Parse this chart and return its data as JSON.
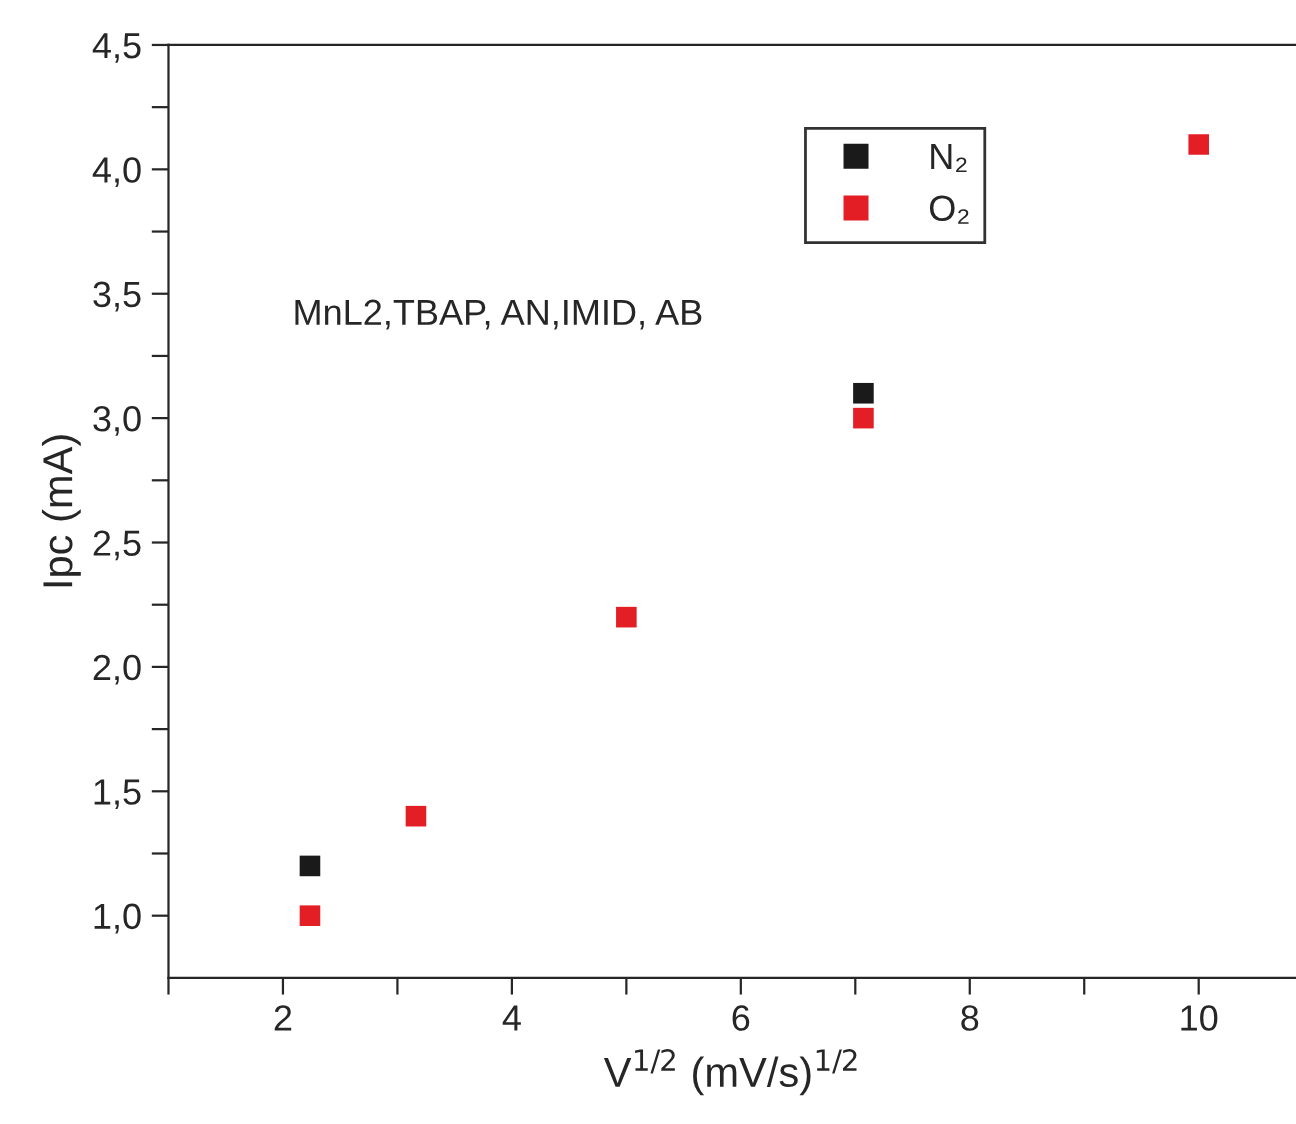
{
  "chart_data": {
    "type": "scatter",
    "xlabel": "V$^{1/2}$ (mV/s)$^{1/2}$",
    "ylabel": "Ipc (mA)",
    "annotations": [
      "MnL2,TBAP, AN,IMID, AB"
    ],
    "x": [
      2.236,
      3.162,
      5,
      7.071,
      10
    ],
    "series": [
      {
        "name": "N₂",
        "color": "#1a1a1a",
        "values": [
          1.2,
          null,
          null,
          3.1,
          null
        ]
      },
      {
        "name": "O₂",
        "color": "#e31e24",
        "values": [
          1.0,
          1.4,
          2.2,
          3.0,
          4.1
        ]
      }
    ],
    "marker": "square",
    "legend": "top right",
    "grid": false,
    "xlim": [
      1,
      10.85
    ],
    "ylim": [
      0.75,
      4.5
    ],
    "xticks": [
      {
        "value": 1,
        "label": null
      },
      2,
      {
        "value": 3,
        "label": null
      },
      4,
      {
        "value": 5,
        "label": null
      },
      6,
      {
        "value": 7,
        "label": null
      },
      8,
      {
        "value": 9,
        "label": null
      },
      10
    ],
    "yticks": [
      {
        "value": 1,
        "label": "1,0"
      },
      {
        "value": 1.25,
        "label": null
      },
      {
        "value": 1.5,
        "label": "1,5"
      },
      {
        "value": 1.75,
        "label": null
      },
      {
        "value": 2,
        "label": "2,0"
      },
      {
        "value": 2.25,
        "label": null
      },
      {
        "value": 2.5,
        "label": "2,5"
      },
      {
        "value": 2.75,
        "label": null
      },
      {
        "value": 3,
        "label": "3,0"
      },
      {
        "value": 3.25,
        "label": null
      },
      {
        "value": 3.5,
        "label": "3,5"
      },
      {
        "value": 3.75,
        "label": null
      },
      {
        "value": 4,
        "label": "4,0"
      },
      {
        "value": 4.25,
        "label": null
      },
      {
        "value": 4.5,
        "label": "4,5"
      }
    ]
  }
}
